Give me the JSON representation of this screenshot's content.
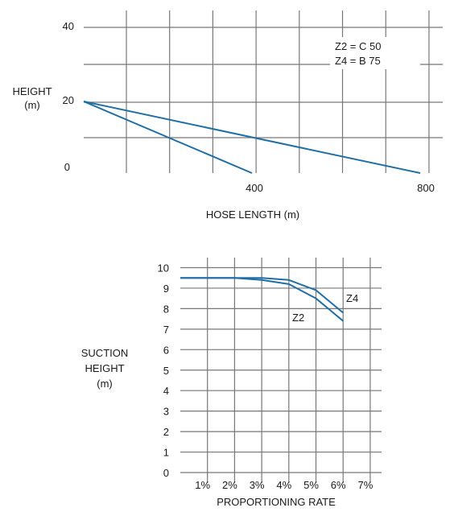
{
  "chart_data": [
    {
      "type": "line",
      "xlabel": "HOSE LENGTH (m)",
      "ylabel": [
        "HEIGHT",
        "(m)"
      ],
      "x_ticks": [
        400,
        800
      ],
      "y_ticks": [
        0,
        20,
        40
      ],
      "xlim": [
        0,
        800
      ],
      "ylim": [
        0,
        40
      ],
      "legend_lines": [
        "Z2 = C 50",
        "Z4 = B 75"
      ],
      "grid": true,
      "series": [
        {
          "x": [
            0,
            400
          ],
          "y": [
            20,
            0
          ]
        },
        {
          "x": [
            0,
            800
          ],
          "y": [
            20,
            0
          ]
        }
      ],
      "colors": {
        "line": "#1f6fa6",
        "grid": "#777777"
      }
    },
    {
      "type": "line",
      "xlabel": "PROPORTIONING RATE",
      "ylabel": [
        "SUCTION",
        "HEIGHT",
        "(m)"
      ],
      "x_tick_labels": [
        "1%",
        "2%",
        "3%",
        "4%",
        "5%",
        "6%",
        "7%"
      ],
      "y_ticks": [
        0,
        1,
        2,
        3,
        4,
        5,
        6,
        7,
        8,
        9,
        10
      ],
      "ylim": [
        0,
        10
      ],
      "grid": true,
      "series": [
        {
          "name": "Z2",
          "x": [
            0,
            1,
            2,
            3,
            4,
            5,
            6
          ],
          "y": [
            9.5,
            9.5,
            9.5,
            9.4,
            9.2,
            8.5,
            7.4
          ]
        },
        {
          "name": "Z4",
          "x": [
            0,
            1,
            2,
            3,
            4,
            5,
            6
          ],
          "y": [
            9.5,
            9.5,
            9.5,
            9.5,
            9.4,
            8.9,
            7.8
          ]
        }
      ],
      "colors": {
        "line": "#1f6fa6",
        "grid": "#777777"
      }
    }
  ]
}
